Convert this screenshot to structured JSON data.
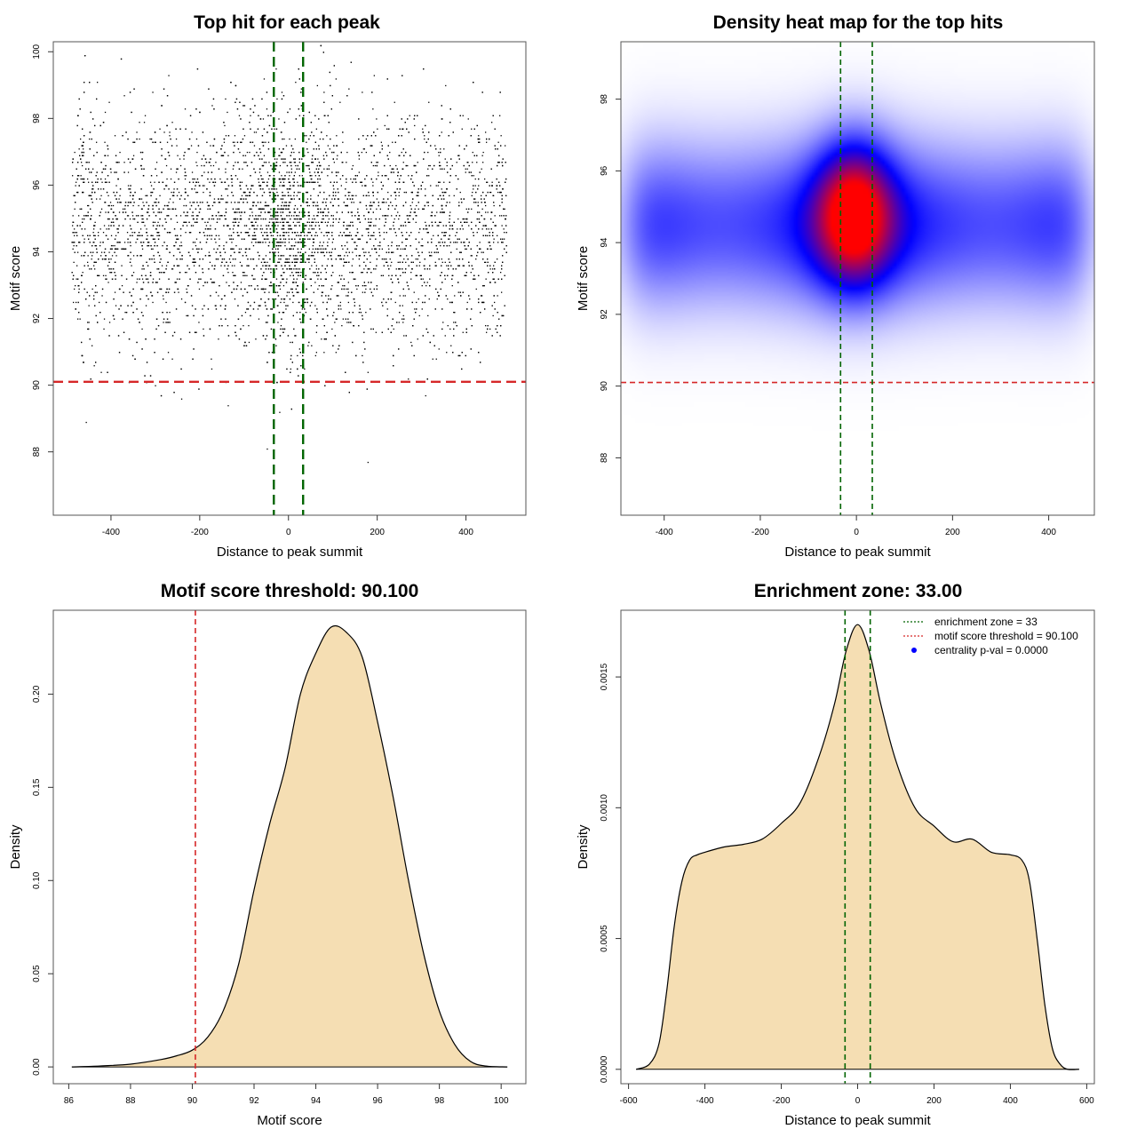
{
  "colors": {
    "threshold": "#d62728",
    "zone": "#006400",
    "density_fill": "#f5deb3",
    "heat_low": "#ffffff",
    "heat_mid": "#0000ff",
    "heat_high": "#ff0000",
    "points": "#000000",
    "centrality_marker": "#0000ff"
  },
  "chart_data": [
    {
      "type": "scatter",
      "title": "Top hit for each peak",
      "xlabel": "Distance to peak summit",
      "ylabel": "Motif score",
      "xlim": [
        -530,
        535
      ],
      "ylim": [
        86.1,
        100.3
      ],
      "xticks": [
        -400,
        -200,
        0,
        200,
        400
      ],
      "xtick_labels": [
        "-400",
        "-200",
        "0",
        "200",
        "400"
      ],
      "yticks": [
        88,
        90,
        92,
        94,
        96,
        98,
        100
      ],
      "ytick_labels": [
        "88",
        "90",
        "92",
        "94",
        "96",
        "98",
        "100"
      ],
      "x_range_of_points": [
        -490,
        490
      ],
      "score_resolution": 0.1,
      "distribution": {
        "score_mean": 94.7,
        "score_sd": 1.75,
        "center_peak_sd": 60
      },
      "hlines": [
        {
          "y": 90.1,
          "style": "dashed",
          "color": "threshold"
        }
      ],
      "vlines": [
        {
          "x": -33,
          "style": "dashed",
          "color": "zone"
        },
        {
          "x": 33,
          "style": "dashed",
          "color": "zone"
        }
      ]
    },
    {
      "type": "heatmap",
      "title": "Density heat map for the top hits",
      "xlabel": "Distance to peak summit",
      "ylabel": "Motif score",
      "xlim": [
        -490,
        495
      ],
      "ylim": [
        86.4,
        99.6
      ],
      "xticks": [
        -400,
        -200,
        0,
        200,
        400
      ],
      "xtick_labels": [
        "-400",
        "-200",
        "0",
        "200",
        "400"
      ],
      "yticks": [
        88,
        90,
        92,
        94,
        96,
        98
      ],
      "ytick_labels": [
        "88",
        "90",
        "92",
        "94",
        "96",
        "98"
      ],
      "peak": {
        "x": -5,
        "y": 94.8,
        "value": 1.0
      },
      "band": {
        "y": 94.5,
        "value": 0.5
      },
      "hlines": [
        {
          "y": 90.1,
          "style": "dashed",
          "color": "threshold"
        }
      ],
      "vlines": [
        {
          "x": -33,
          "style": "dashed",
          "color": "zone"
        },
        {
          "x": 33,
          "style": "dashed",
          "color": "zone"
        }
      ]
    },
    {
      "type": "area",
      "title": "Motif score threshold: 90.100",
      "xlabel": "Motif score",
      "ylabel": "Density",
      "xlim": [
        85.5,
        100.8
      ],
      "ylim": [
        -0.009,
        0.245
      ],
      "xticks": [
        86,
        88,
        90,
        92,
        94,
        96,
        98,
        100
      ],
      "xtick_labels": [
        "86",
        "88",
        "90",
        "92",
        "94",
        "96",
        "98",
        "100"
      ],
      "yticks": [
        0.0,
        0.05,
        0.1,
        0.15,
        0.2
      ],
      "ytick_labels": [
        "0.00",
        "0.05",
        "0.10",
        "0.15",
        "0.20"
      ],
      "x": [
        86.1,
        87.0,
        88.0,
        89.0,
        89.5,
        90.0,
        90.5,
        91.0,
        91.5,
        92.0,
        92.5,
        93.0,
        93.5,
        94.0,
        94.5,
        95.0,
        95.5,
        96.0,
        96.5,
        97.0,
        97.5,
        98.0,
        98.5,
        99.0,
        99.5,
        100.2
      ],
      "y": [
        0.0,
        0.0005,
        0.0015,
        0.004,
        0.006,
        0.009,
        0.016,
        0.03,
        0.055,
        0.095,
        0.13,
        0.16,
        0.2,
        0.222,
        0.236,
        0.233,
        0.22,
        0.185,
        0.145,
        0.1,
        0.06,
        0.03,
        0.012,
        0.003,
        0.0005,
        0.0
      ],
      "vlines": [
        {
          "x": 90.1,
          "style": "dashed",
          "color": "threshold"
        }
      ]
    },
    {
      "type": "area",
      "title": "Enrichment zone: 33.00",
      "xlabel": "Distance to peak summit",
      "ylabel": "Density",
      "xlim": [
        -620,
        620
      ],
      "ylim": [
        -5.5e-05,
        0.001755
      ],
      "xticks": [
        -600,
        -400,
        -200,
        0,
        200,
        400,
        600
      ],
      "xtick_labels": [
        "-600",
        "-400",
        "-200",
        "0",
        "200",
        "400",
        "600"
      ],
      "yticks": [
        0.0,
        0.0005,
        0.001,
        0.0015
      ],
      "ytick_labels": [
        "0.0000",
        "0.0005",
        "0.0010",
        "0.0015"
      ],
      "x": [
        -580,
        -545,
        -520,
        -500,
        -480,
        -460,
        -440,
        -420,
        -400,
        -350,
        -300,
        -250,
        -200,
        -150,
        -100,
        -60,
        -30,
        0,
        30,
        60,
        100,
        150,
        200,
        250,
        300,
        350,
        400,
        430,
        450,
        470,
        490,
        510,
        530,
        550,
        580
      ],
      "y": [
        0.0,
        2e-05,
        0.0001,
        0.0003,
        0.00055,
        0.00072,
        0.0008,
        0.00082,
        0.00083,
        0.00085,
        0.00086,
        0.00088,
        0.00094,
        0.00102,
        0.0012,
        0.0014,
        0.0016,
        0.0017,
        0.0016,
        0.0014,
        0.00118,
        0.001,
        0.00093,
        0.00087,
        0.00088,
        0.00083,
        0.00082,
        0.0008,
        0.00072,
        0.0005,
        0.00025,
        8e-05,
        2e-05,
        0.0,
        0.0
      ],
      "vlines": [
        {
          "x": -33,
          "style": "dashed",
          "color": "zone"
        },
        {
          "x": 33,
          "style": "dashed",
          "color": "zone"
        }
      ],
      "legend": {
        "position": "top-right",
        "entries": [
          {
            "label": "enrichment zone = 33",
            "kind": "dotted",
            "color": "zone"
          },
          {
            "label": "motif score threshold = 90.100",
            "kind": "dotted",
            "color": "threshold"
          },
          {
            "label": "centrality p-val = 0.0000",
            "kind": "dot",
            "color": "centrality_marker"
          }
        ]
      }
    }
  ]
}
